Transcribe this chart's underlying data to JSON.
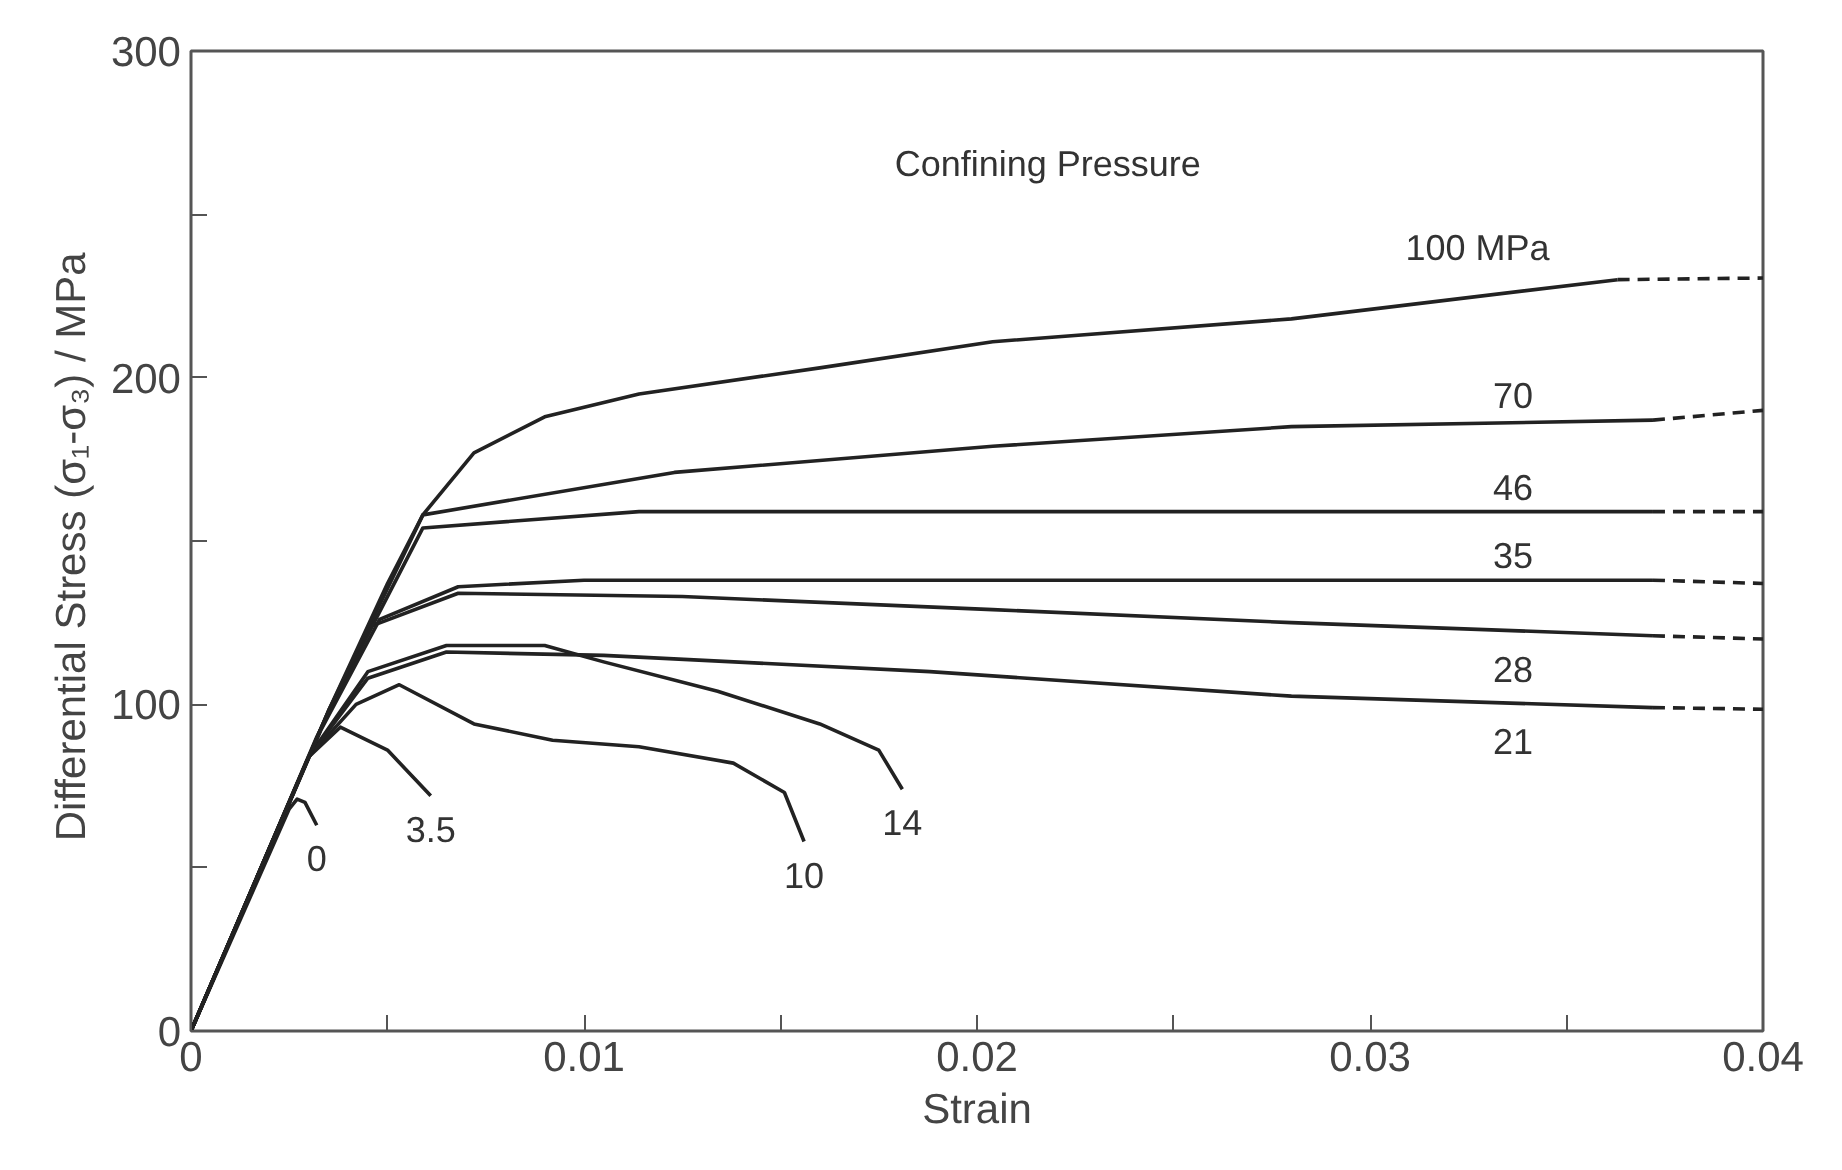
{
  "chart_data": {
    "type": "line",
    "xlabel": "Strain",
    "ylabel": "Differential Stress  (σ₁-σ₃) / MPa",
    "xlim": [
      0,
      0.04
    ],
    "ylim": [
      0,
      300
    ],
    "xticks": [
      0,
      {
        "value": 0.005,
        "label": null
      },
      0.01,
      {
        "value": 0.015,
        "label": null
      },
      0.02,
      {
        "value": 0.025,
        "label": null
      },
      0.03,
      {
        "value": 0.035,
        "label": null
      },
      0.04
    ],
    "yticks": [
      0,
      {
        "value": 50,
        "label": null
      },
      100,
      {
        "value": 150,
        "label": null
      },
      200,
      {
        "value": 250,
        "label": null
      },
      300
    ],
    "grid": false,
    "legend": false,
    "line_style": "solid",
    "marker": "none",
    "series": [
      {
        "name": "0",
        "color": "#222222",
        "x": [
          0,
          0.0025,
          0.0027,
          0.0029,
          0.0032
        ],
        "values": [
          0,
          68,
          71,
          70,
          63
        ]
      },
      {
        "name": "3.5",
        "color": "#222222",
        "x": [
          0,
          0.003,
          0.0038,
          0.005,
          0.0061
        ],
        "values": [
          0,
          84,
          93,
          86,
          72
        ]
      },
      {
        "name": "10",
        "color": "#222222",
        "x": [
          0,
          0.003,
          0.0042,
          0.0053,
          0.0072,
          0.0092,
          0.0114,
          0.0138,
          0.0151,
          0.0156
        ],
        "values": [
          0,
          84,
          100,
          106,
          94,
          89,
          87,
          82,
          73,
          58
        ]
      },
      {
        "name": "14",
        "color": "#222222",
        "x": [
          0,
          0.003,
          0.0045,
          0.0065,
          0.009,
          0.0105,
          0.0134,
          0.016,
          0.0175,
          0.0181
        ],
        "values": [
          0,
          84,
          110,
          118,
          118,
          113,
          104,
          94,
          86,
          74
        ]
      },
      {
        "name": "21",
        "color": "#222222",
        "x": [
          0,
          0.003,
          0.0045,
          0.0065,
          0.0105,
          0.0188,
          0.028,
          0.0372
        ],
        "values": [
          0,
          84,
          108,
          116,
          115,
          110,
          102.5,
          99
        ]
      },
      {
        "name": "28",
        "color": "#222222",
        "x": [
          0,
          0.0032,
          0.0046,
          0.0068,
          0.0125,
          0.0204,
          0.028,
          0.0372
        ],
        "values": [
          0,
          90,
          124,
          134,
          133,
          129,
          125,
          121
        ]
      },
      {
        "name": "35",
        "color": "#222222",
        "x": [
          0,
          0.0033,
          0.0048,
          0.0068,
          0.01,
          0.02,
          0.03,
          0.0372
        ],
        "values": [
          0,
          92,
          126,
          136,
          138,
          138,
          138,
          138
        ]
      },
      {
        "name": "46",
        "color": "#222222",
        "x": [
          0,
          0.0035,
          0.0059,
          0.0114,
          0.02,
          0.03,
          0.0372
        ],
        "values": [
          0,
          98,
          154,
          159,
          159,
          159,
          159
        ]
      },
      {
        "name": "70",
        "color": "#222222",
        "x": [
          0,
          0.0035,
          0.0059,
          0.0123,
          0.0204,
          0.028,
          0.0372
        ],
        "values": [
          0,
          98,
          158,
          171,
          179,
          185,
          187
        ]
      },
      {
        "name": "100 MPa",
        "color": "#222222",
        "x": [
          0,
          0.0035,
          0.005,
          0.0059,
          0.0072,
          0.009,
          0.0114,
          0.016,
          0.0204,
          0.028,
          0.0363
        ],
        "values": [
          0,
          98,
          137,
          158,
          177,
          188,
          195,
          203,
          211,
          218,
          230
        ]
      },
      {
        "color": "#222222",
        "line_style": "dashed",
        "x": [
          0.0372,
          0.04
        ],
        "values": [
          99,
          98.5
        ]
      },
      {
        "color": "#222222",
        "line_style": "dashed",
        "x": [
          0.0372,
          0.04
        ],
        "values": [
          121,
          120
        ]
      },
      {
        "color": "#222222",
        "line_style": "dashed",
        "x": [
          0.0372,
          0.04
        ],
        "values": [
          138,
          137
        ]
      },
      {
        "color": "#222222",
        "line_style": "dashed",
        "x": [
          0.0372,
          0.04
        ],
        "values": [
          159,
          159
        ]
      },
      {
        "color": "#222222",
        "line_style": "dashed",
        "x": [
          0.0372,
          0.04
        ],
        "values": [
          187,
          190
        ]
      },
      {
        "color": "#222222",
        "line_style": "dashed",
        "x": [
          0.0363,
          0.04
        ],
        "values": [
          230,
          230.5
        ]
      }
    ],
    "annotations": [
      "Confining Pressure"
    ]
  }
}
